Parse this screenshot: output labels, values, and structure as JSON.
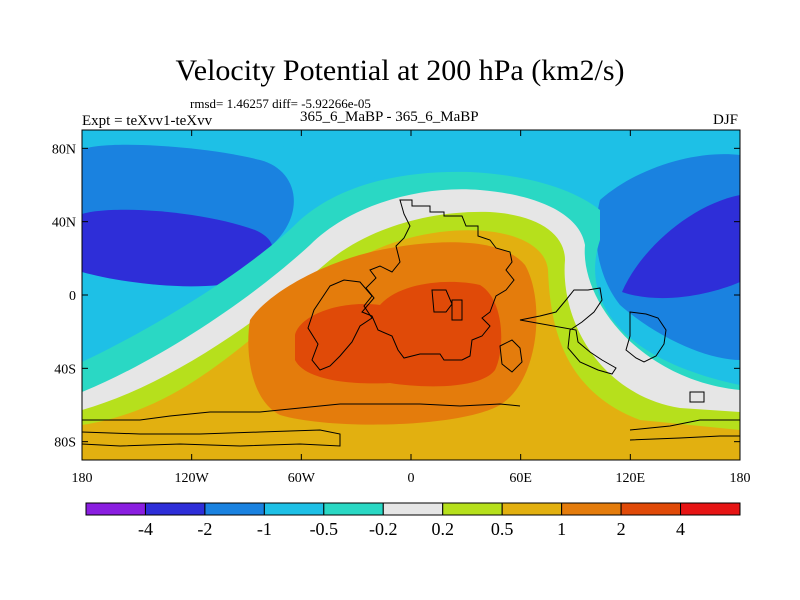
{
  "chart_data": {
    "type": "heatmap",
    "title": "Velocity Potential at 200 hPa (km2/s)",
    "stats": "rmsd= 1.46257 diff= -5.92266e-05",
    "expt_label": "Expt = teXvv1-teXvv",
    "period_label": "365_6_MaBP - 365_6_MaBP",
    "season": "DJF",
    "xlim": [
      -180,
      180
    ],
    "ylim": [
      -90,
      90
    ],
    "x_ticks": [
      {
        "value": -180,
        "label": "180"
      },
      {
        "value": -120,
        "label": "120W"
      },
      {
        "value": -60,
        "label": "60W"
      },
      {
        "value": 0,
        "label": "0"
      },
      {
        "value": 60,
        "label": "60E"
      },
      {
        "value": 120,
        "label": "120E"
      },
      {
        "value": 180,
        "label": "180"
      }
    ],
    "y_ticks": [
      {
        "value": 80,
        "label": "80N"
      },
      {
        "value": 40,
        "label": "40N"
      },
      {
        "value": 0,
        "label": "0"
      },
      {
        "value": -40,
        "label": "40S"
      },
      {
        "value": -80,
        "label": "80S"
      }
    ],
    "colorbar": {
      "levels": [
        "-4",
        "-2",
        "-1",
        "-0.5",
        "-0.2",
        "0.2",
        "0.5",
        "1",
        "2",
        "4"
      ],
      "colors": [
        "#8a1ee0",
        "#2e2ed8",
        "#1a82e0",
        "#1ec0e6",
        "#2ad8c4",
        "#e6e6e6",
        "#b6e01c",
        "#e2b010",
        "#e47c0c",
        "#e04a08",
        "#e61414"
      ]
    },
    "contour_regions": [
      {
        "band": "-2 to -1",
        "color": "#1a82e0",
        "area": "high latitudes and eastern Pacific"
      },
      {
        "band": "-4 to -2",
        "color": "#2e2ed8",
        "area": "North Pacific near 150W-180, 30N"
      },
      {
        "band": "-4 to -2",
        "color": "#2e2ed8",
        "area": "western Pacific near 150E, 20N"
      },
      {
        "band": "0.2 to 0.5",
        "color": "#b6e01c",
        "area": "Atlantic-African sector"
      },
      {
        "band": "0.5 to 1",
        "color": "#e2b010",
        "area": "Atlantic-African sector and Southern Ocean"
      },
      {
        "band": "1 to 2",
        "color": "#e47c0c",
        "area": "South Atlantic, Africa"
      },
      {
        "band": "2 to 4",
        "color": "#e04a08",
        "area": "maximum near 20W-40E, 10S-50S"
      }
    ]
  }
}
